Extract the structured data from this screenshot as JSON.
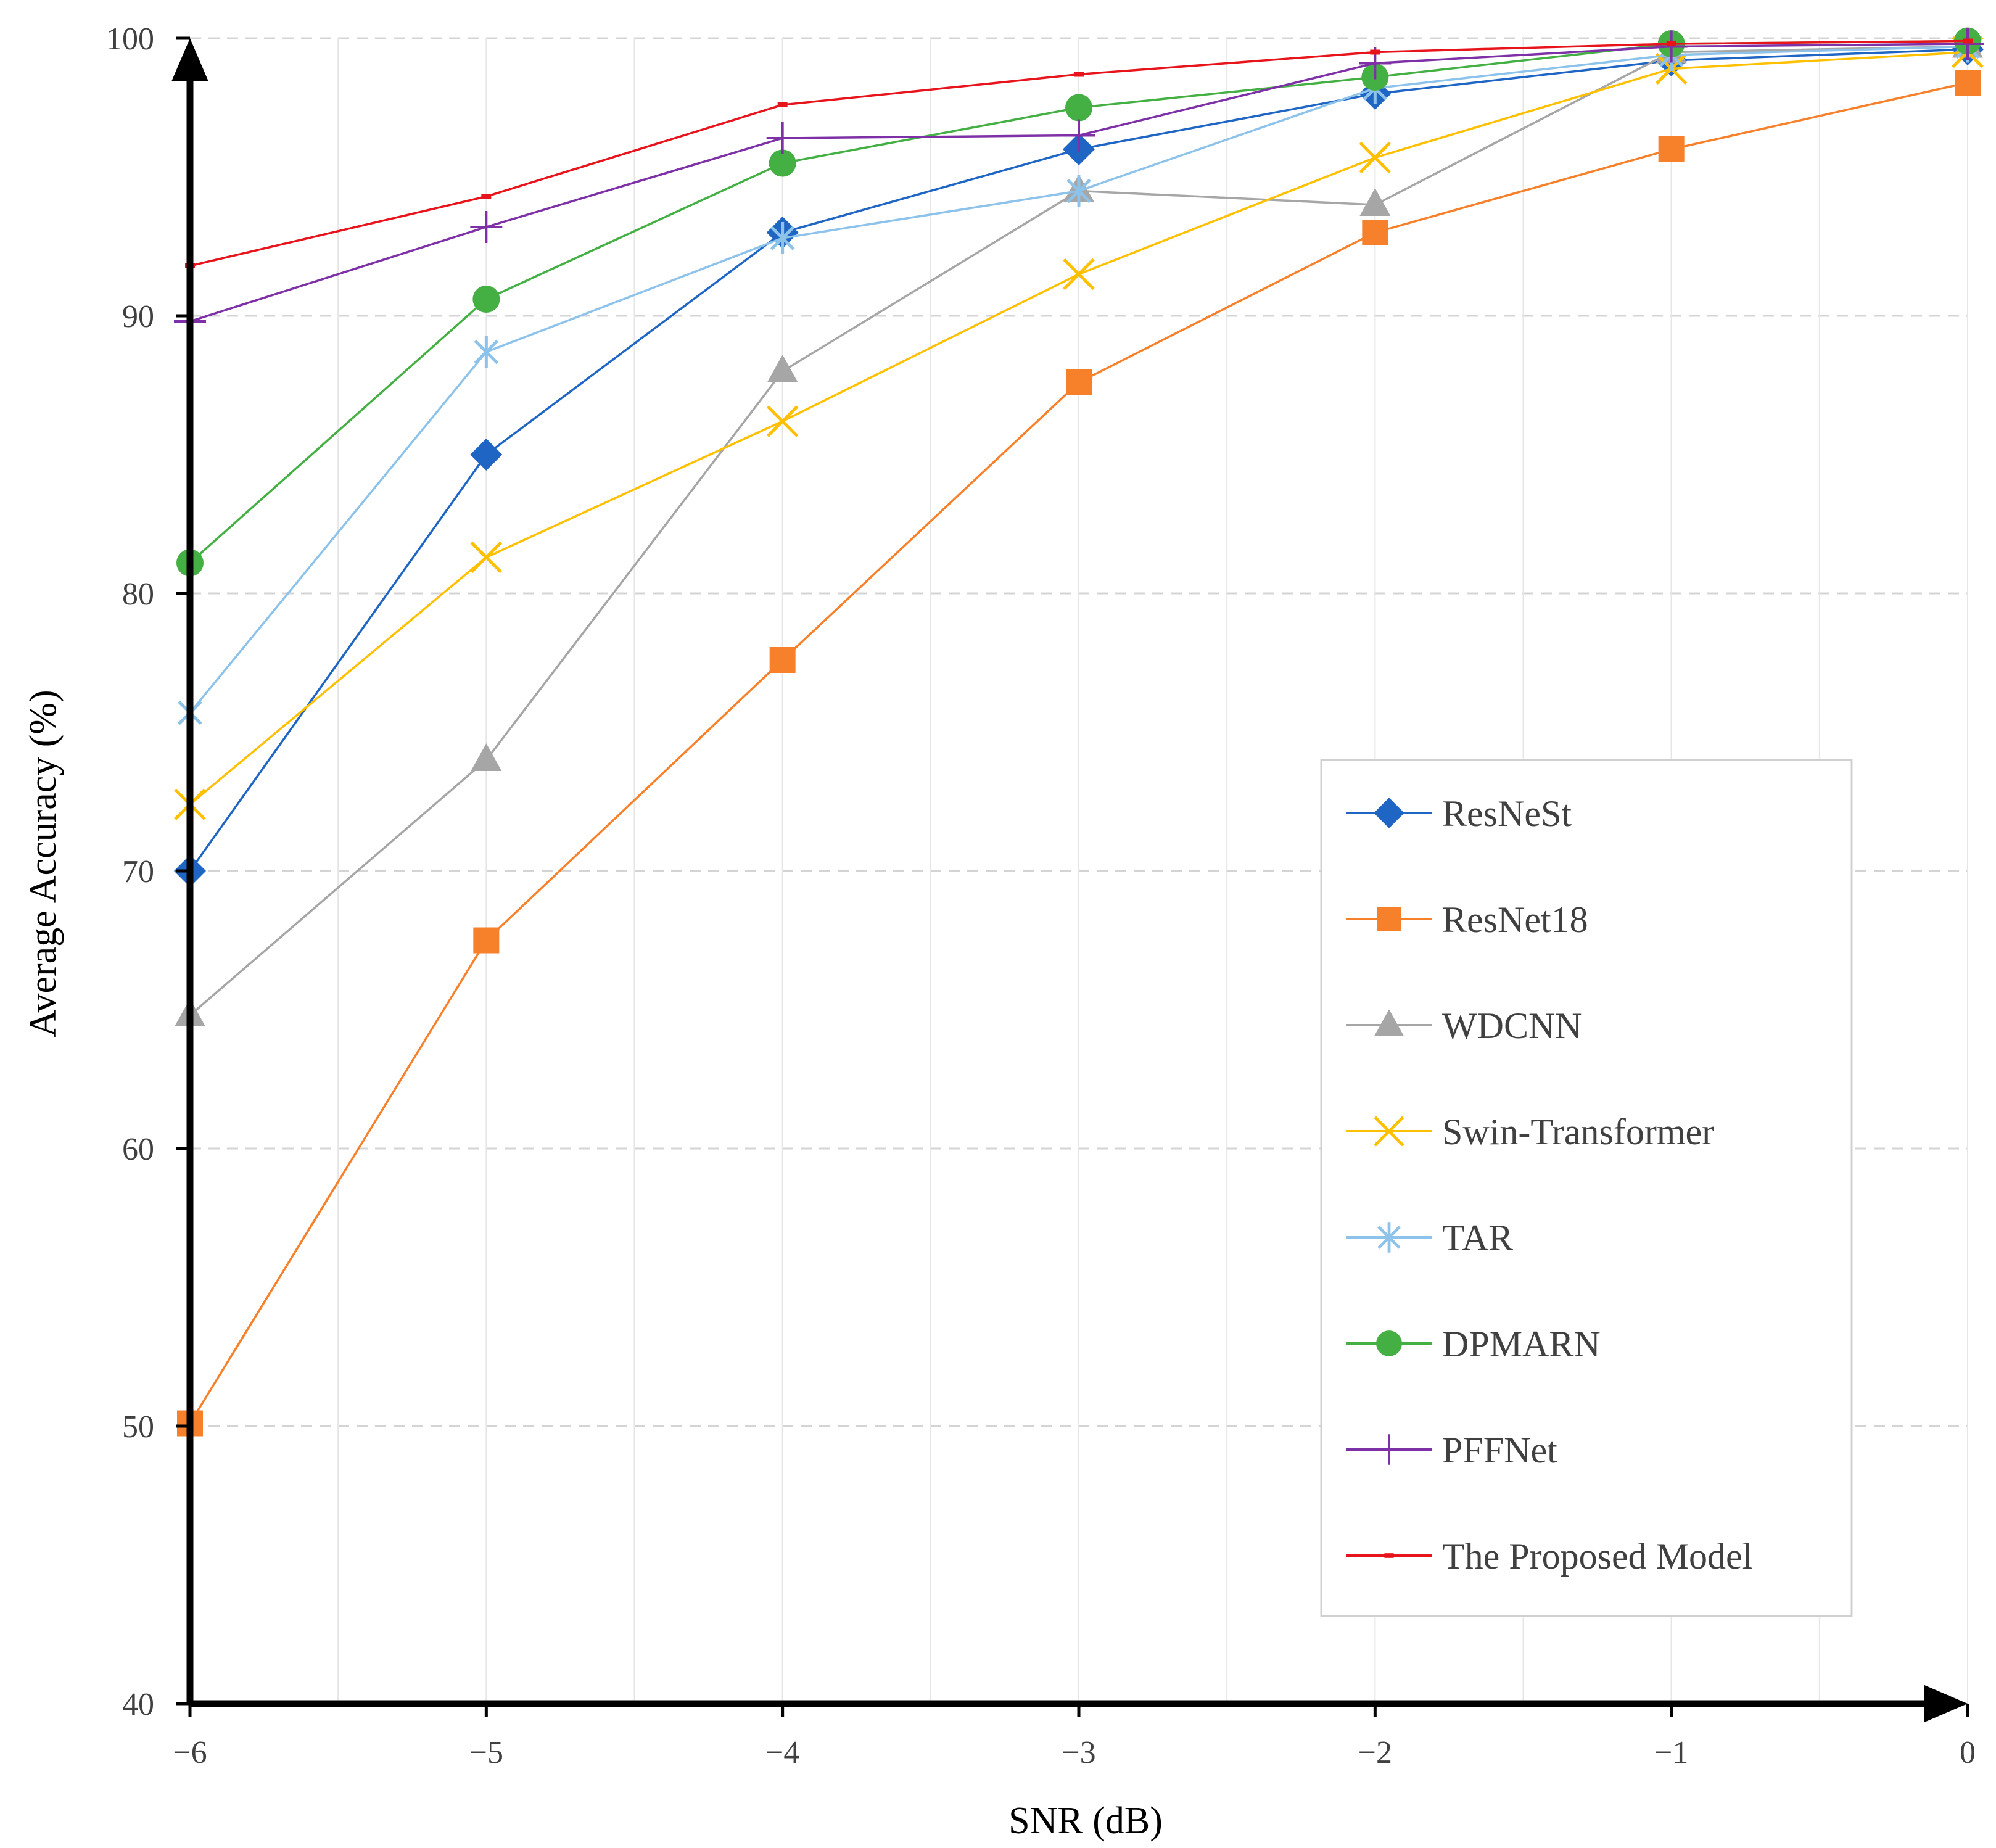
{
  "chart_data": {
    "type": "line",
    "title": "",
    "xlabel": "SNR (dB)",
    "ylabel": "Average Accuracy (%)",
    "x": [
      -6,
      -5,
      -4,
      -3,
      -2,
      -1,
      0
    ],
    "x_tick_labels": [
      "−6",
      "−5",
      "−4",
      "−3",
      "−2",
      "−1",
      "0"
    ],
    "xlim": [
      -6,
      0
    ],
    "ylim": [
      40,
      100
    ],
    "y_ticks": [
      40,
      50,
      60,
      70,
      80,
      90,
      100
    ],
    "y_tick_labels": [
      "40",
      "50",
      "60",
      "70",
      "80",
      "90",
      "100"
    ],
    "grid": true,
    "legend_position": "right",
    "series": [
      {
        "name": "ResNeSt",
        "color": "#1F66C4",
        "marker": "diamond",
        "values": [
          70.0,
          85.0,
          93.0,
          96.0,
          98.0,
          99.2,
          99.6
        ]
      },
      {
        "name": "ResNet18",
        "color": "#F7812B",
        "marker": "square",
        "values": [
          50.1,
          67.5,
          77.6,
          87.6,
          93.0,
          96.0,
          98.4
        ]
      },
      {
        "name": "WDCNN",
        "color": "#A6A6A6",
        "marker": "triangle",
        "values": [
          64.8,
          74.0,
          88.0,
          94.5,
          94.0,
          99.5,
          99.7
        ]
      },
      {
        "name": "Swin-Transformer",
        "color": "#FFC000",
        "marker": "x",
        "values": [
          72.4,
          81.3,
          86.2,
          91.5,
          95.7,
          98.9,
          99.5
        ]
      },
      {
        "name": "TAR",
        "color": "#8DC3EA",
        "marker": "asterisk",
        "values": [
          75.7,
          88.7,
          92.8,
          94.5,
          98.2,
          99.4,
          99.7
        ]
      },
      {
        "name": "DPMARN",
        "color": "#44B044",
        "marker": "circle",
        "values": [
          81.1,
          90.6,
          95.5,
          97.5,
          98.6,
          99.8,
          99.9
        ]
      },
      {
        "name": "PFFNet",
        "color": "#7E30A6",
        "marker": "plus",
        "values": [
          89.8,
          93.2,
          96.4,
          96.5,
          99.1,
          99.7,
          99.8
        ]
      },
      {
        "name": "The Proposed Model",
        "color": "#E8141C",
        "marker": "dash",
        "values": [
          91.8,
          94.3,
          97.6,
          98.7,
          99.5,
          99.8,
          99.9
        ]
      }
    ]
  }
}
